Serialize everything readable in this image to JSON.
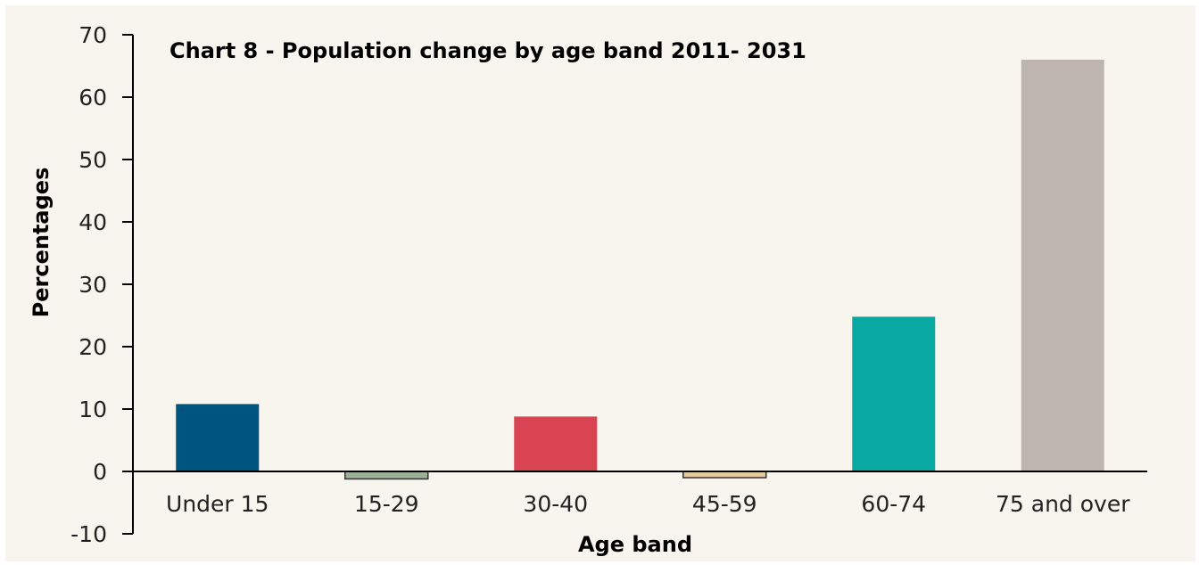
{
  "chart_data": {
    "type": "bar",
    "title": "Chart 8  - Population change by age band 2011- 2031",
    "xlabel": "Age band",
    "ylabel": "Percentages",
    "categories": [
      "Under 15",
      "15-29",
      "30-40",
      "45-59",
      "60-74",
      "75 and over"
    ],
    "values": [
      10.8,
      -1.2,
      8.8,
      -1.0,
      24.8,
      66.0
    ],
    "colors": [
      "#005480",
      "#9db097",
      "#d94452",
      "#e6c89a",
      "#0aa8a2",
      "#beb5b0"
    ],
    "ylim": [
      -10,
      70
    ],
    "yticks": [
      "-10",
      "0",
      "10",
      "20",
      "30",
      "40",
      "50",
      "60",
      "70"
    ],
    "grid": false,
    "legend": "none",
    "background": "#f8f4ee"
  }
}
